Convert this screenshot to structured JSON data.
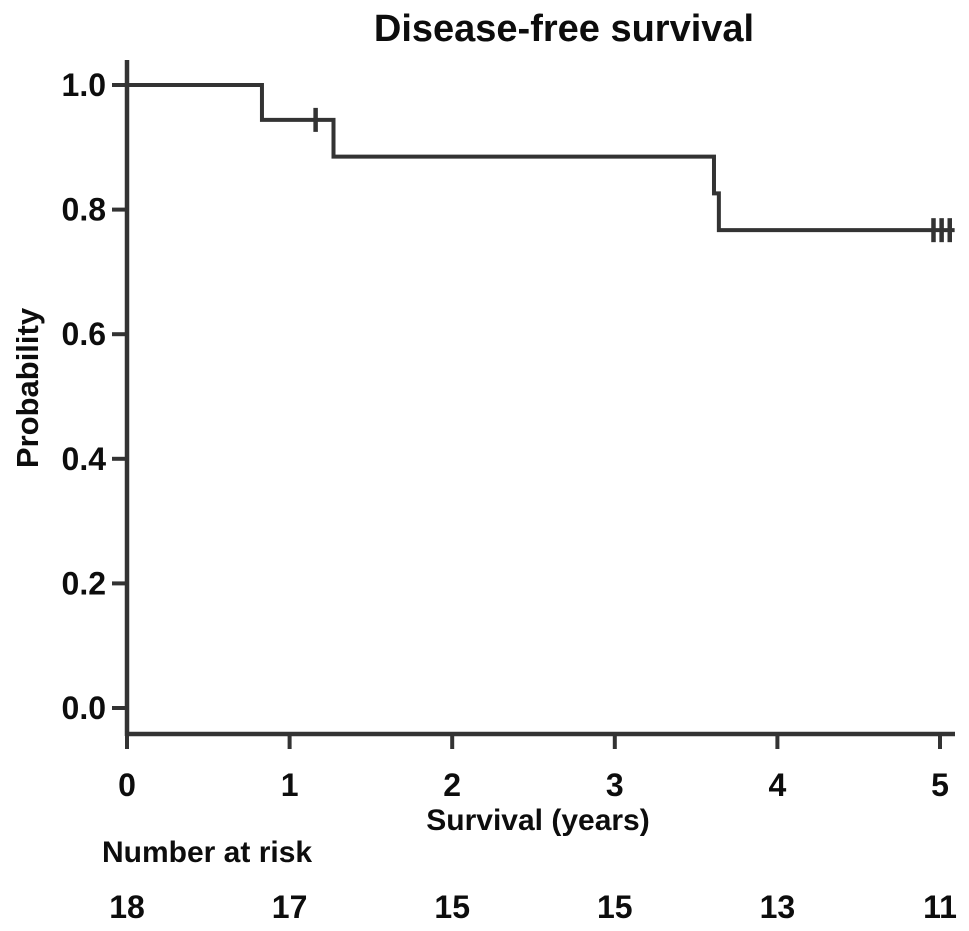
{
  "chart_data": {
    "type": "line",
    "variant": "kaplan-meier-step",
    "title": "Disease-free survival",
    "xlabel": "Survival (years)",
    "ylabel": "Probability",
    "xlim": [
      0,
      5.1
    ],
    "ylim": [
      0.0,
      1.0
    ],
    "grid": false,
    "legend": "none",
    "line_color": "#333333",
    "text_color": "#0d0d0d",
    "x_ticks": [
      {
        "value": 0,
        "label": "0"
      },
      {
        "value": 1,
        "label": "1"
      },
      {
        "value": 2,
        "label": "2"
      },
      {
        "value": 3,
        "label": "3"
      },
      {
        "value": 4,
        "label": "4"
      },
      {
        "value": 5,
        "label": "5"
      }
    ],
    "y_ticks": [
      {
        "value": 1.0,
        "label": "1.0"
      },
      {
        "value": 0.8,
        "label": "0.8"
      },
      {
        "value": 0.6,
        "label": "0.6"
      },
      {
        "value": 0.4,
        "label": "0.4"
      },
      {
        "value": 0.2,
        "label": "0.2"
      },
      {
        "value": 0.0,
        "label": "0.0"
      }
    ],
    "series": [
      {
        "name": "Disease-free survival",
        "color": "#333333",
        "steps": [
          [
            0.0,
            1.0
          ],
          [
            0.83,
            1.0
          ],
          [
            0.83,
            0.944
          ],
          [
            1.27,
            0.944
          ],
          [
            1.27,
            0.885
          ],
          [
            3.61,
            0.885
          ],
          [
            3.61,
            0.826
          ],
          [
            3.64,
            0.826
          ],
          [
            3.64,
            0.767
          ],
          [
            5.09,
            0.767
          ]
        ],
        "censor_marks": [
          [
            1.16,
            0.944
          ],
          [
            4.96,
            0.767
          ],
          [
            5.01,
            0.767
          ],
          [
            5.06,
            0.767
          ]
        ]
      }
    ],
    "risk_table": {
      "label": "Number at risk",
      "times": [
        0,
        1,
        2,
        3,
        4,
        5
      ],
      "counts": [
        "18",
        "17",
        "15",
        "15",
        "13",
        "11"
      ]
    }
  }
}
